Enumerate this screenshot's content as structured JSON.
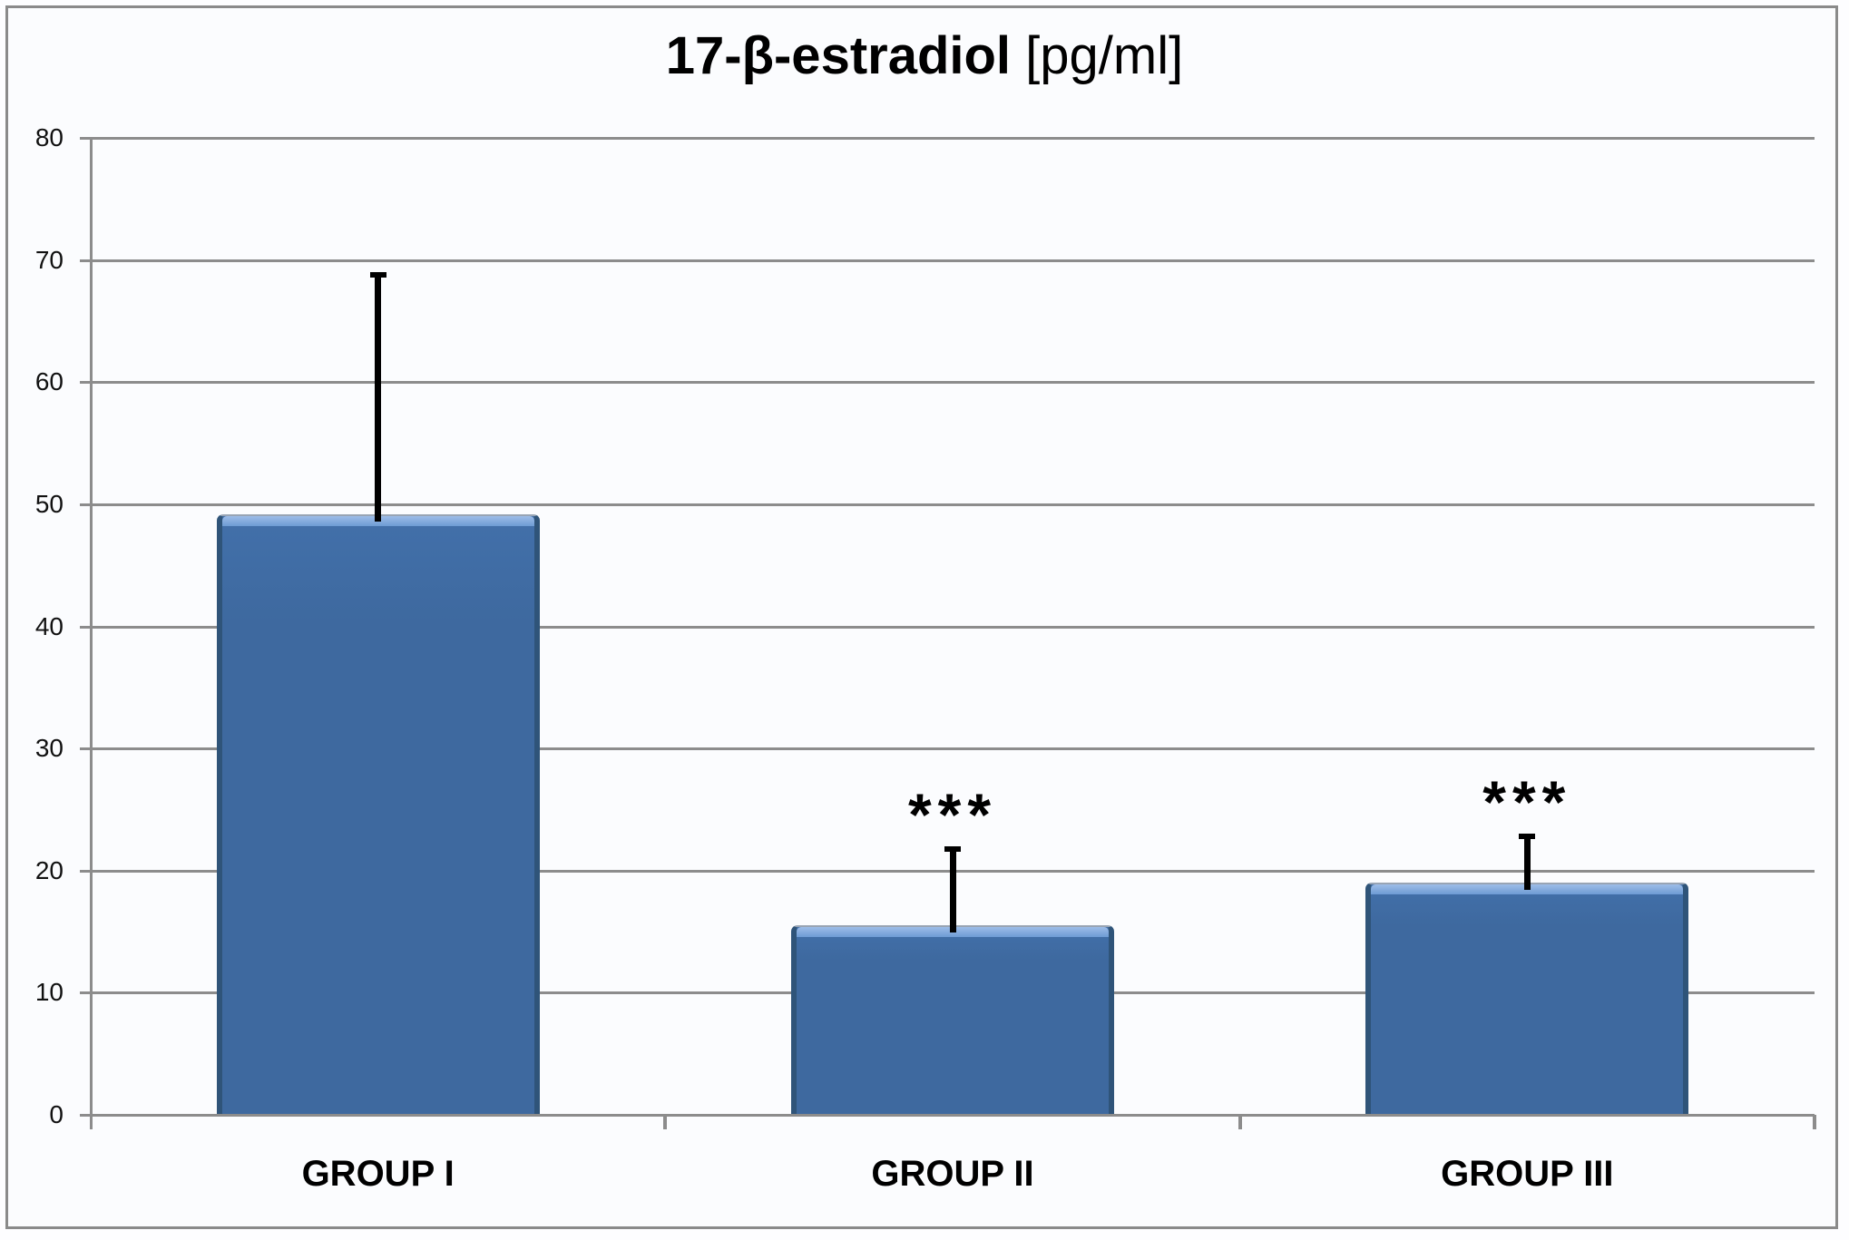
{
  "chart": {
    "title": {
      "main": "17-β-estradiol",
      "unit": " [pg/ml]"
    }
  },
  "chart_data": {
    "type": "bar",
    "title": "17-β-estradiol [pg/ml]",
    "xlabel": "",
    "ylabel": "",
    "categories": [
      "GROUP I",
      "GROUP II",
      "GROUP III"
    ],
    "values": [
      49.2,
      15.5,
      19.0
    ],
    "error_up": [
      19.8,
      6.5,
      4.0
    ],
    "error_bar_tops": [
      69.0,
      22.0,
      23.0
    ],
    "annotations": [
      "",
      "***",
      "***"
    ],
    "ylim": [
      0,
      80
    ],
    "ytick_step": 10,
    "yticks": [
      80,
      70,
      60,
      50,
      40,
      30,
      20,
      10,
      0
    ],
    "grid": "horizontal-only",
    "legend": "none",
    "colors": {
      "bar_fill": "#3E699F",
      "bar_fill_light": "#4270AA",
      "bar_edge": "#2F5479",
      "bar_highlight_top": "#9DBCE8",
      "bar_highlight_bottom": "#6E9BD4",
      "bar_hairline": "#98A4B4",
      "grid": "#8C8C8C",
      "error_bar": "#000000",
      "text": "#000000"
    }
  }
}
